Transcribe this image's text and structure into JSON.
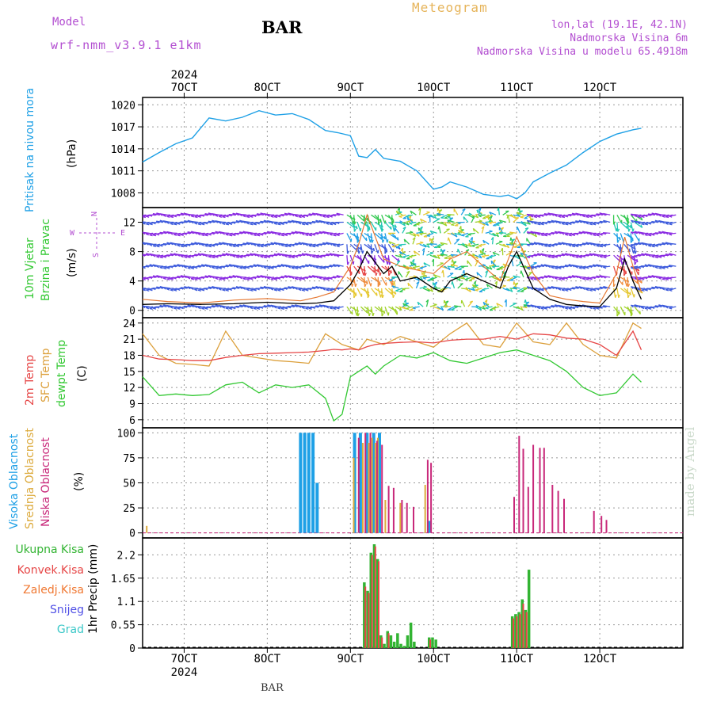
{
  "header": {
    "model_label": "Model",
    "model_name": "wrf-nmm_v3.9.1 e1km",
    "station": "BAR",
    "title": "Meteogram",
    "lonlat": "lon,lat (19.1E, 42.1N)",
    "elevation": "Nadmorska Visina 6m",
    "model_elevation": "Nadmorska Visina u modelu 65.4918m"
  },
  "footer": {
    "station": "BAR"
  },
  "watermark": "made by Angel",
  "colors": {
    "pressure": "#1ea0e6",
    "temp2m": "#e64646",
    "sfc": "#dca03c",
    "dewpt": "#32c832",
    "high_cloud": "#1ea0e6",
    "mid_cloud": "#dcaa3c",
    "low_cloud": "#c8287a",
    "total_precip": "#32b432",
    "conv_precip": "#e64646",
    "frozen_precip": "#f07832",
    "snow": "#5050e6",
    "hail": "#3cc8c8",
    "wind_label": "#32c832",
    "wind_dir": "#b34fd1"
  },
  "chart_data": [
    {
      "type": "line",
      "panel": "pressure",
      "ylabel_colored": "Pritisak na nivou mora",
      "unit": "(hPa)",
      "ylim": [
        1006,
        1021
      ],
      "yticks": [
        1008,
        1011,
        1014,
        1017,
        1020
      ],
      "x_top_labels": [
        "7OCT",
        "8OCT",
        "9OCT",
        "10OCT",
        "11OCT",
        "12OCT"
      ],
      "x_top_year": "2024",
      "x": [
        6.5,
        6.7,
        6.9,
        7.1,
        7.3,
        7.5,
        7.7,
        7.9,
        8.1,
        8.3,
        8.5,
        8.7,
        8.85,
        9.0,
        9.1,
        9.2,
        9.3,
        9.4,
        9.6,
        9.8,
        10.0,
        10.1,
        10.2,
        10.4,
        10.6,
        10.8,
        10.9,
        11.0,
        11.1,
        11.2,
        11.4,
        11.6,
        11.8,
        12.0,
        12.2,
        12.4,
        12.5
      ],
      "series": [
        {
          "values": [
            1012.2,
            1013.5,
            1014.7,
            1015.5,
            1018.2,
            1017.8,
            1018.3,
            1019.2,
            1018.6,
            1018.8,
            1018.0,
            1016.5,
            1016.2,
            1015.8,
            1013.0,
            1012.8,
            1013.9,
            1012.7,
            1012.3,
            1011.0,
            1008.5,
            1008.8,
            1009.5,
            1008.8,
            1007.8,
            1007.5,
            1007.7,
            1007.2,
            1008.0,
            1009.5,
            1010.7,
            1011.8,
            1013.5,
            1015.0,
            1016.0,
            1016.6,
            1016.8
          ]
        }
      ]
    },
    {
      "type": "line",
      "panel": "wind",
      "ylabel_colored": "10m Vjetar",
      "ylabel_colored2": "Brzina i Pravac",
      "unit": "(m/s)",
      "compass": {
        "n": "N",
        "s": "S",
        "e": "E",
        "w": "W"
      },
      "ylim": [
        -1,
        14
      ],
      "yticks": [
        0,
        4,
        8,
        12
      ],
      "arrow_rows": [
        0.5,
        3,
        4.5,
        6,
        7.5,
        9,
        10.5,
        12,
        13
      ],
      "x": [
        6.5,
        6.8,
        7.2,
        7.6,
        8.0,
        8.4,
        8.6,
        8.8,
        9.0,
        9.1,
        9.2,
        9.3,
        9.4,
        9.5,
        9.6,
        9.8,
        10.0,
        10.1,
        10.2,
        10.4,
        10.6,
        10.8,
        10.9,
        11.0,
        11.2,
        11.4,
        11.6,
        11.8,
        12.0,
        12.2,
        12.3,
        12.4,
        12.5
      ],
      "series": [
        {
          "values": [
            0.8,
            0.9,
            0.8,
            0.9,
            1.1,
            0.9,
            1.0,
            1.3,
            3.5,
            5.5,
            8.0,
            6.5,
            5.0,
            6.0,
            4.0,
            4.5,
            3.0,
            2.5,
            4.0,
            5.0,
            4.0,
            3.0,
            6.0,
            8.0,
            3.0,
            1.5,
            0.8,
            0.6,
            0.5,
            3.0,
            7.0,
            4.0,
            1.5
          ]
        },
        {
          "values": [
            1.5,
            1.2,
            1.0,
            1.4,
            1.6,
            1.3,
            1.8,
            2.5,
            6.0,
            9.0,
            13.0,
            10.0,
            7.0,
            6.5,
            6.0,
            5.5,
            5.0,
            6.0,
            7.0,
            8.0,
            6.0,
            4.0,
            7.0,
            10.0,
            5.0,
            2.0,
            1.5,
            1.2,
            1.0,
            5.0,
            10.0,
            6.0,
            2.5
          ]
        }
      ]
    },
    {
      "type": "line",
      "panel": "temperature",
      "ylabel_colored": "2m Temp",
      "ylabel_colored2": "SFC Temp",
      "ylabel_colored3": "dewpt Temp",
      "unit": "(C)",
      "ylim": [
        4.5,
        25
      ],
      "yticks": [
        6,
        9,
        12,
        15,
        18,
        21,
        24
      ],
      "x": [
        6.5,
        6.7,
        6.9,
        7.1,
        7.3,
        7.5,
        7.7,
        7.9,
        8.1,
        8.3,
        8.5,
        8.7,
        8.8,
        8.9,
        9.0,
        9.1,
        9.2,
        9.3,
        9.4,
        9.6,
        9.8,
        10.0,
        10.2,
        10.4,
        10.6,
        10.8,
        11.0,
        11.2,
        11.4,
        11.6,
        11.8,
        12.0,
        12.2,
        12.4,
        12.5
      ],
      "series": [
        {
          "values": [
            18.0,
            17.3,
            17.2,
            17.0,
            17.0,
            17.6,
            18.0,
            18.3,
            18.4,
            18.5,
            18.6,
            18.9,
            19.1,
            19.0,
            19.2,
            19.0,
            19.6,
            20.0,
            20.2,
            20.4,
            20.5,
            20.3,
            20.8,
            21.0,
            21.0,
            21.5,
            21.0,
            22.0,
            21.8,
            21.2,
            21.0,
            20.0,
            18.0,
            22.5,
            19.0
          ]
        },
        {
          "values": [
            22.0,
            18.0,
            16.5,
            16.3,
            16.0,
            22.5,
            18.0,
            17.5,
            17.0,
            16.8,
            16.5,
            22.0,
            21.0,
            20.0,
            19.5,
            19.0,
            21.0,
            20.5,
            20.0,
            21.5,
            20.5,
            19.5,
            22.0,
            24.0,
            20.0,
            19.5,
            24.0,
            20.5,
            20.0,
            24.0,
            20.0,
            18.0,
            17.5,
            24.0,
            23.0
          ]
        },
        {
          "values": [
            14.0,
            10.5,
            10.8,
            10.5,
            10.7,
            12.5,
            13.0,
            11.0,
            12.5,
            12.0,
            12.5,
            10.0,
            5.8,
            7.0,
            14.0,
            15.0,
            16.0,
            14.5,
            16.0,
            18.0,
            17.5,
            18.5,
            17.0,
            16.5,
            17.5,
            18.5,
            19.0,
            18.0,
            17.0,
            15.0,
            12.0,
            10.5,
            11.0,
            14.5,
            13.0
          ]
        }
      ]
    },
    {
      "type": "bar",
      "panel": "clouds",
      "ylabel_colored": "Visoka Oblacnost",
      "ylabel_colored2": "Srednja Oblacnost",
      "ylabel_colored3": "Niska Oblacnost",
      "unit": "(%)",
      "ylim": [
        -5,
        105
      ],
      "yticks": [
        0,
        25,
        50,
        75,
        100
      ],
      "series": [
        {
          "name_ref": "high",
          "x": [
            8.4,
            8.45,
            8.5,
            8.55,
            8.6,
            9.05,
            9.12,
            9.2,
            9.28,
            9.35,
            9.95
          ],
          "values": [
            100,
            100,
            100,
            100,
            50,
            100,
            100,
            100,
            100,
            100,
            12
          ]
        },
        {
          "name_ref": "mid",
          "x": [
            6.55,
            9.04,
            9.15,
            9.22,
            9.26,
            9.3,
            9.33,
            9.42,
            9.6,
            9.9
          ],
          "values": [
            7,
            75,
            90,
            90,
            95,
            90,
            95,
            33,
            30,
            48
          ]
        },
        {
          "name_ref": "low",
          "x": [
            9.1,
            9.18,
            9.24,
            9.32,
            9.38,
            9.46,
            9.52,
            9.62,
            9.68,
            9.76,
            9.93,
            9.97,
            10.97,
            11.03,
            11.08,
            11.14,
            11.2,
            11.28,
            11.33,
            11.43,
            11.5,
            11.57,
            11.93,
            12.02,
            12.08
          ],
          "values": [
            95,
            100,
            100,
            92,
            88,
            47,
            45,
            33,
            30,
            26,
            73,
            70,
            36,
            97,
            84,
            46,
            88,
            85,
            85,
            48,
            42,
            34,
            22,
            17,
            13
          ]
        }
      ]
    },
    {
      "type": "bar",
      "panel": "precip",
      "legend": [
        "Ukupna Kisa",
        "Konvek.Kisa",
        "Zaledj.Kisa",
        "Snijeg",
        "Grad"
      ],
      "ylabel": "1hr Precip (mm)",
      "ylim": [
        0,
        2.6
      ],
      "yticks": [
        0,
        0.55,
        1.1,
        1.65,
        2.2
      ],
      "ytick_labels": [
        "0",
        "0.55",
        "1.1",
        "1.65",
        "2.2"
      ],
      "x_bottom_labels": [
        "7OCT",
        "8OCT",
        "9OCT",
        "10OCT",
        "11OCT",
        "12OCT"
      ],
      "x_bottom_year": "2024",
      "total": {
        "x": [
          9.17,
          9.21,
          9.25,
          9.29,
          9.33,
          9.37,
          9.41,
          9.45,
          9.49,
          9.53,
          9.57,
          9.61,
          9.65,
          9.69,
          9.73,
          9.77,
          9.95,
          9.99,
          10.03,
          10.95,
          10.99,
          11.03,
          11.07,
          11.11,
          11.15
        ],
        "values": [
          1.55,
          1.35,
          2.25,
          2.45,
          2.1,
          0.3,
          0.1,
          0.4,
          0.3,
          0.15,
          0.35,
          0.1,
          0.05,
          0.3,
          0.6,
          0.15,
          0.25,
          0.25,
          0.2,
          0.75,
          0.8,
          0.85,
          1.15,
          0.9,
          1.85
        ]
      },
      "conv": {
        "x": [
          9.18,
          9.22,
          9.26,
          9.3,
          9.34,
          9.38,
          9.46,
          9.96,
          10.96,
          11.0,
          11.04,
          11.08,
          11.12
        ],
        "values": [
          1.45,
          1.3,
          2.2,
          2.4,
          2.05,
          0.25,
          0.35,
          0.2,
          0.7,
          0.75,
          0.8,
          1.05,
          0.85
        ]
      }
    }
  ]
}
